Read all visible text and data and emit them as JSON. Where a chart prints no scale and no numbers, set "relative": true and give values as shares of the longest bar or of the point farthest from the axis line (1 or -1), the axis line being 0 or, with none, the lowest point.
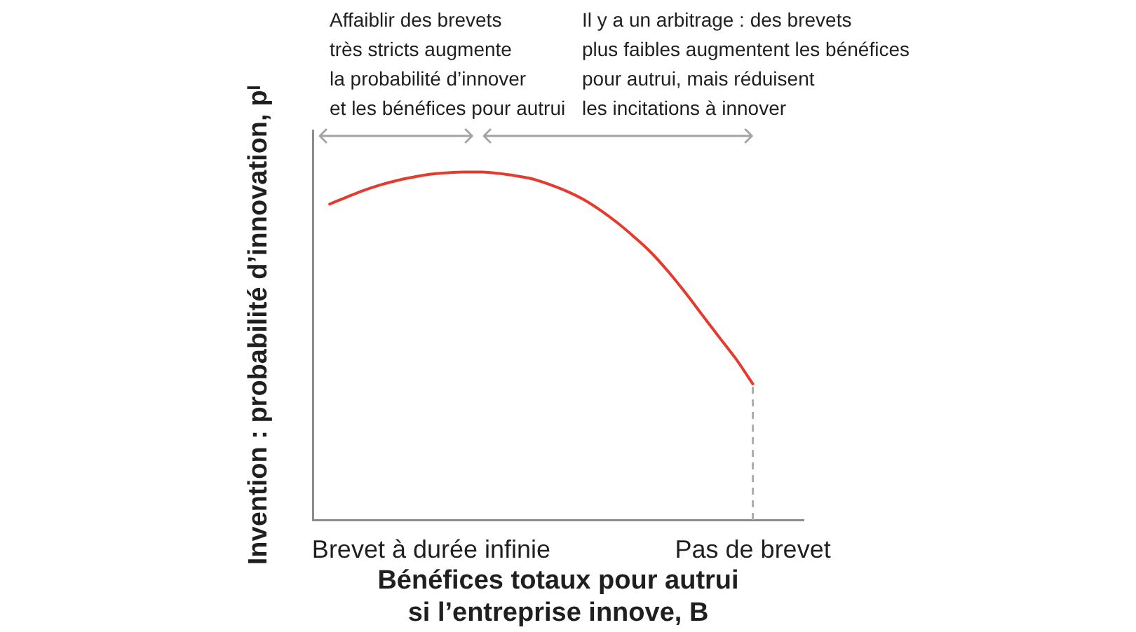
{
  "chart_data": {
    "type": "line",
    "relative": true,
    "ylabel": "Invention : probabilité d’innovation, pᴵ",
    "xlabel": "Bénéfices totaux pour autrui\nsi l’entreprise innove, B",
    "categories": [
      null,
      null,
      null,
      null,
      null,
      null,
      null,
      "Brevet à durée infinie",
      null,
      null,
      null,
      null,
      null,
      null,
      null,
      null,
      null,
      null,
      null,
      null,
      null,
      null,
      null,
      null,
      null,
      null,
      "Pas de brevet",
      null,
      null,
      null
    ],
    "annotations": [
      "Affaiblir des brevets\ntrès stricts augmente\nla probabilité d’innover\net les bénéfices pour autrui",
      "Il y a un arbitrage : des brevets\nplus faibles augmentent les bénéfices\npour autrui, mais réduisent\nles incitations à innover"
    ],
    "series": [
      {
        "color": "#e53a2e",
        "values": [
          null,
          0.908,
          0.928,
          0.947,
          0.963,
          0.976,
          0.986,
          0.994,
          0.998,
          1,
          1,
          0.996,
          0.989,
          0.98,
          0.964,
          0.945,
          0.921,
          0.89,
          0.854,
          0.813,
          0.768,
          0.714,
          0.654,
          0.59,
          0.526,
          0.463,
          0.391,
          null,
          null,
          null
        ]
      }
    ],
    "ref_lines": [
      {
        "axis": "x",
        "value": "Pas de brevet",
        "color": "#aaaaaa",
        "line_style": "dashed"
      }
    ],
    "grid": false,
    "legend": false,
    "marker": "none"
  }
}
